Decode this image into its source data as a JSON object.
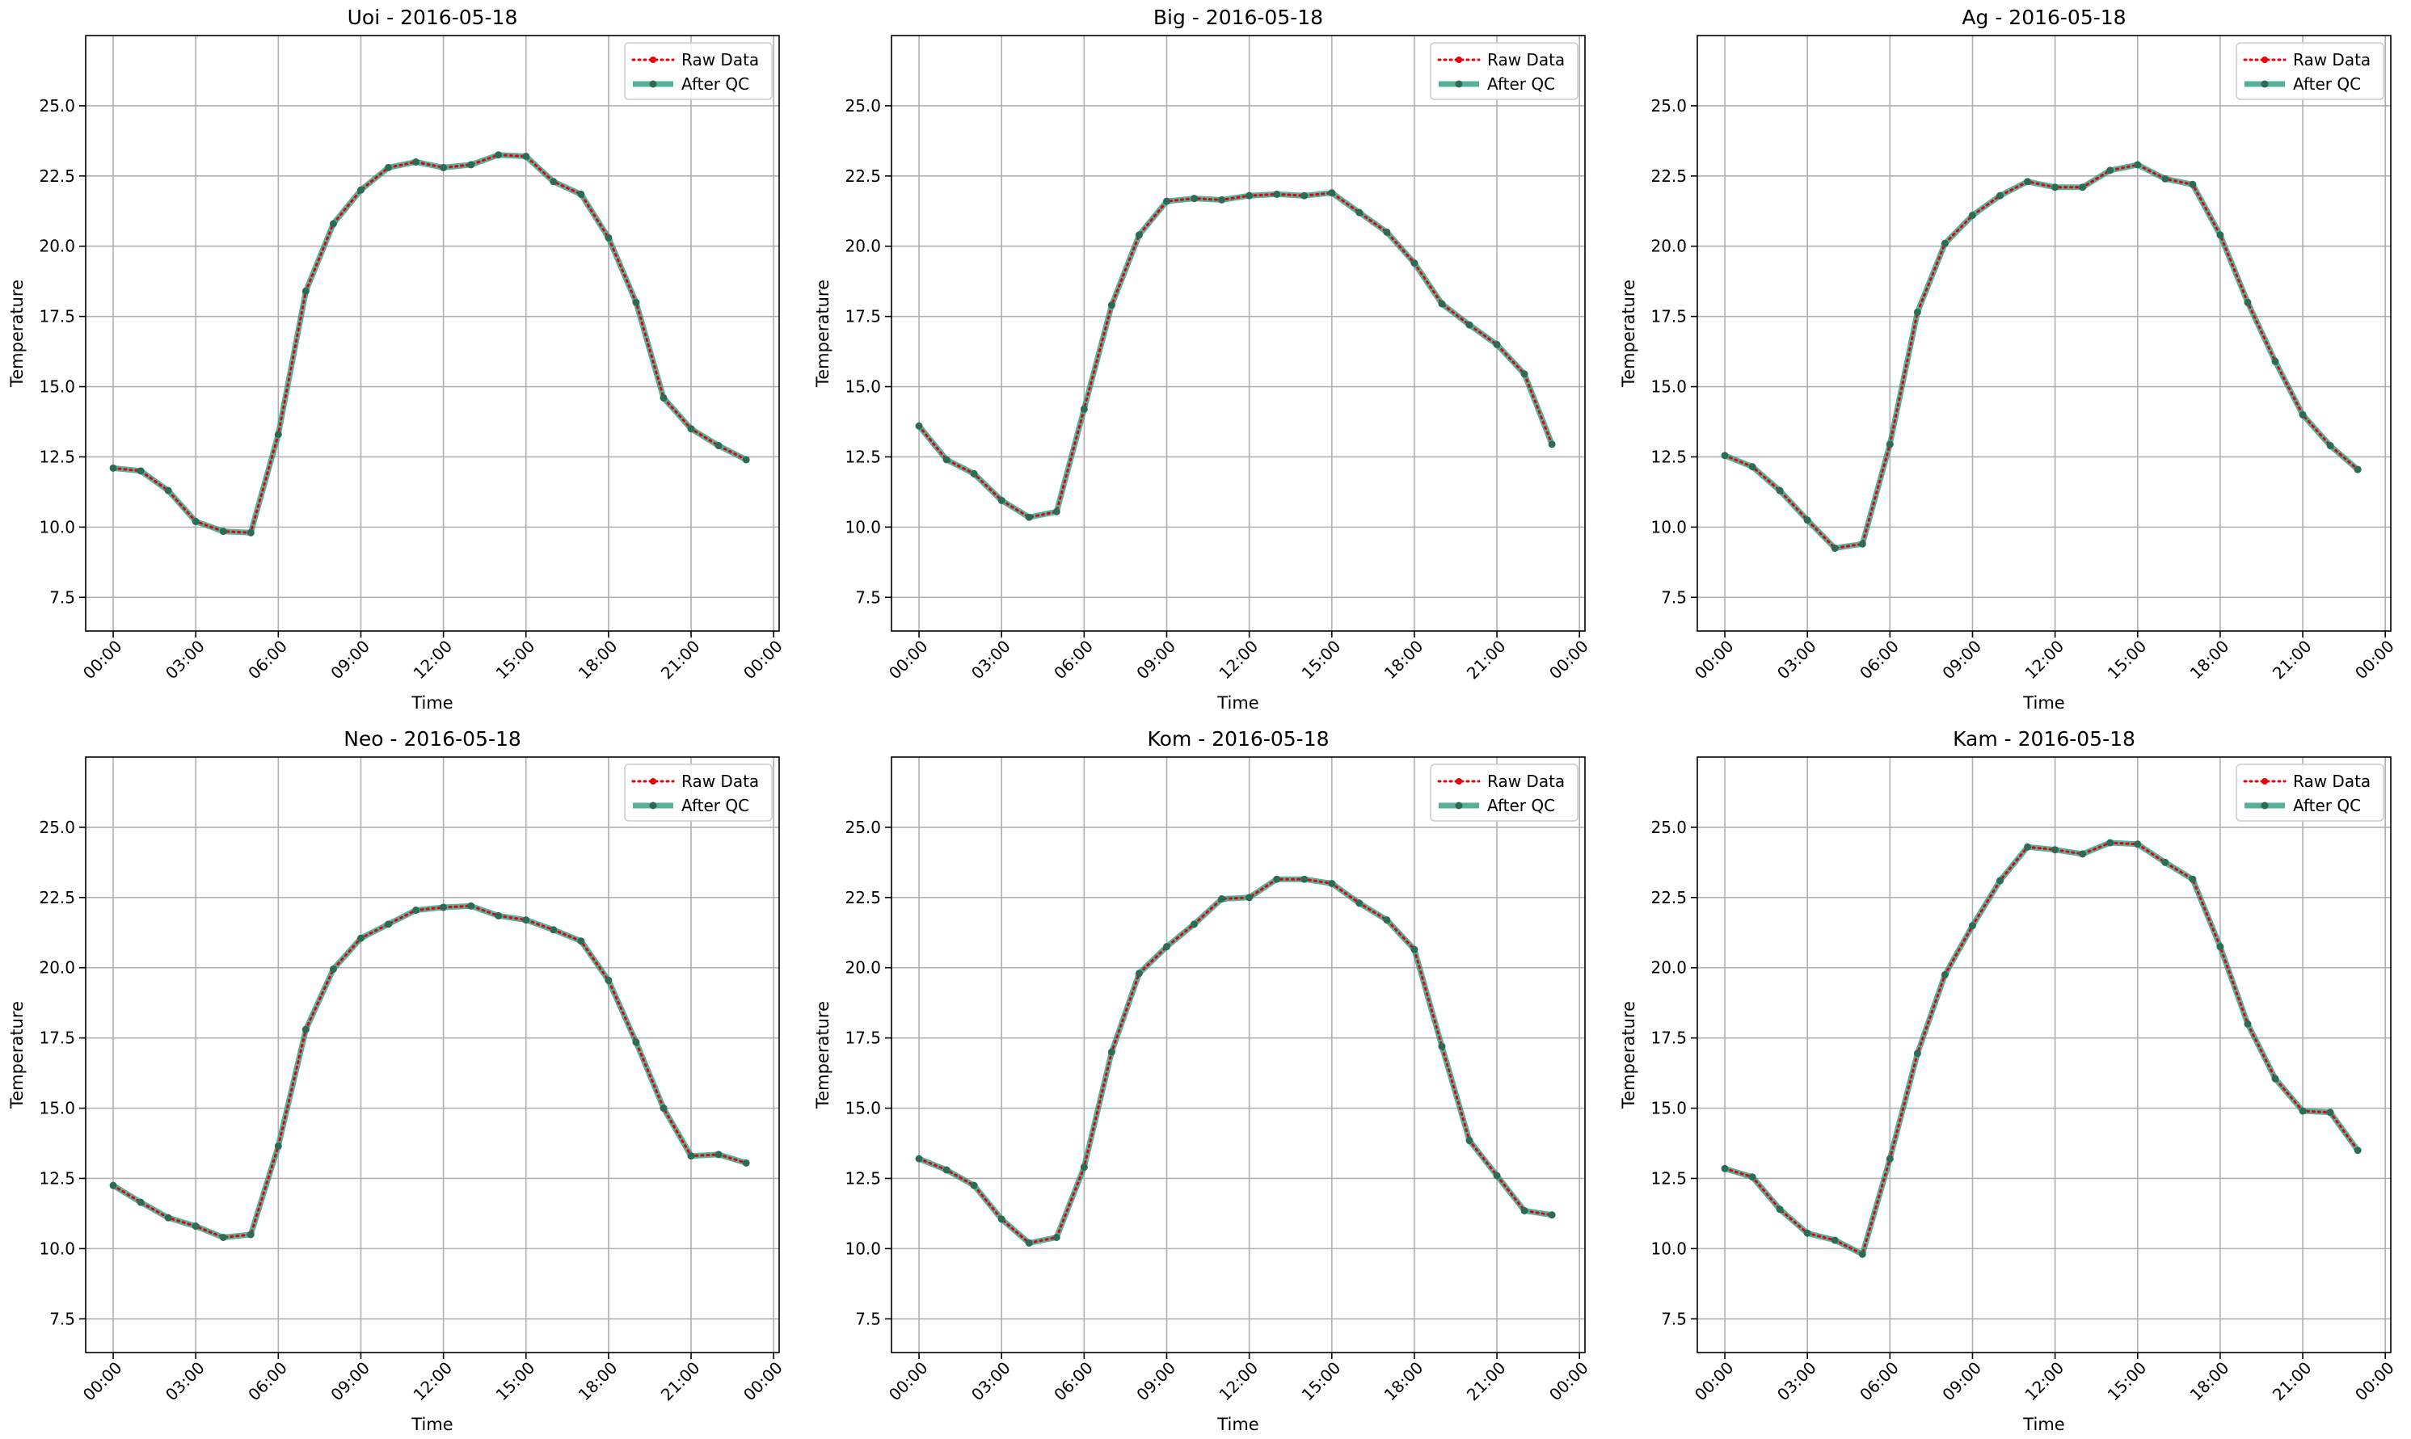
{
  "chart_data": [
    {
      "type": "line",
      "title": "Uoi - 2016-05-18",
      "xlabel": "Time",
      "ylabel": "Temperature",
      "x": [
        "00:00",
        "01:00",
        "02:00",
        "03:00",
        "04:00",
        "05:00",
        "06:00",
        "07:00",
        "08:00",
        "09:00",
        "10:00",
        "11:00",
        "12:00",
        "13:00",
        "14:00",
        "15:00",
        "16:00",
        "17:00",
        "18:00",
        "19:00",
        "20:00",
        "21:00",
        "22:00",
        "23:00"
      ],
      "series": [
        {
          "name": "Raw Data",
          "values": [
            12.1,
            12.0,
            11.3,
            10.2,
            9.85,
            9.8,
            13.3,
            18.4,
            20.8,
            22.0,
            22.8,
            23.0,
            22.8,
            22.9,
            23.25,
            23.2,
            22.3,
            21.85,
            20.3,
            18.0,
            14.6,
            13.5,
            12.9,
            12.4
          ]
        },
        {
          "name": "After QC",
          "values": [
            12.1,
            12.0,
            11.3,
            10.2,
            9.85,
            9.8,
            13.3,
            18.4,
            20.8,
            22.0,
            22.8,
            23.0,
            22.8,
            22.9,
            23.25,
            23.2,
            22.3,
            21.85,
            20.3,
            18.0,
            14.6,
            13.5,
            12.9,
            12.4
          ]
        }
      ],
      "ylim": [
        6.3,
        27.5
      ],
      "xlim": [
        -1.0,
        24.2
      ],
      "yticks": [
        "7.5",
        "10.0",
        "12.5",
        "15.0",
        "17.5",
        "20.0",
        "22.5",
        "25.0"
      ],
      "xticks": [
        "00:00",
        "03:00",
        "06:00",
        "09:00",
        "12:00",
        "15:00",
        "18:00",
        "21:00",
        "00:00"
      ],
      "grid": true,
      "legend": "top-right"
    },
    {
      "type": "line",
      "title": "Big - 2016-05-18",
      "xlabel": "Time",
      "ylabel": "Temperature",
      "x": [
        "00:00",
        "01:00",
        "02:00",
        "03:00",
        "04:00",
        "05:00",
        "06:00",
        "07:00",
        "08:00",
        "09:00",
        "10:00",
        "11:00",
        "12:00",
        "13:00",
        "14:00",
        "15:00",
        "16:00",
        "17:00",
        "18:00",
        "19:00",
        "20:00",
        "21:00",
        "22:00",
        "23:00"
      ],
      "series": [
        {
          "name": "Raw Data",
          "values": [
            13.6,
            12.4,
            11.9,
            10.95,
            10.35,
            10.55,
            14.2,
            17.9,
            20.4,
            21.6,
            21.7,
            21.65,
            21.8,
            21.85,
            21.8,
            21.9,
            21.2,
            20.5,
            19.4,
            17.95,
            17.2,
            16.5,
            15.45,
            12.95
          ]
        },
        {
          "name": "After QC",
          "values": [
            13.6,
            12.4,
            11.9,
            10.95,
            10.35,
            10.55,
            14.2,
            17.9,
            20.4,
            21.6,
            21.7,
            21.65,
            21.8,
            21.85,
            21.8,
            21.9,
            21.2,
            20.5,
            19.4,
            17.95,
            17.2,
            16.5,
            15.45,
            12.95
          ]
        }
      ],
      "ylim": [
        6.3,
        27.5
      ],
      "xlim": [
        -1.0,
        24.2
      ],
      "yticks": [
        "7.5",
        "10.0",
        "12.5",
        "15.0",
        "17.5",
        "20.0",
        "22.5",
        "25.0"
      ],
      "xticks": [
        "00:00",
        "03:00",
        "06:00",
        "09:00",
        "12:00",
        "15:00",
        "18:00",
        "21:00",
        "00:00"
      ],
      "grid": true,
      "legend": "top-right"
    },
    {
      "type": "line",
      "title": "Ag - 2016-05-18",
      "xlabel": "Time",
      "ylabel": "Temperature",
      "x": [
        "00:00",
        "01:00",
        "02:00",
        "03:00",
        "04:00",
        "05:00",
        "06:00",
        "07:00",
        "08:00",
        "09:00",
        "10:00",
        "11:00",
        "12:00",
        "13:00",
        "14:00",
        "15:00",
        "16:00",
        "17:00",
        "18:00",
        "19:00",
        "20:00",
        "21:00",
        "22:00",
        "23:00"
      ],
      "series": [
        {
          "name": "Raw Data",
          "values": [
            12.55,
            12.15,
            11.3,
            10.25,
            9.25,
            9.4,
            12.95,
            17.65,
            20.1,
            21.1,
            21.8,
            22.3,
            22.1,
            22.1,
            22.7,
            22.9,
            22.4,
            22.2,
            20.4,
            18.0,
            15.9,
            14.0,
            12.9,
            12.05
          ]
        },
        {
          "name": "After QC",
          "values": [
            12.55,
            12.15,
            11.3,
            10.25,
            9.25,
            9.4,
            12.95,
            17.65,
            20.1,
            21.1,
            21.8,
            22.3,
            22.1,
            22.1,
            22.7,
            22.9,
            22.4,
            22.2,
            20.4,
            18.0,
            15.9,
            14.0,
            12.9,
            12.05
          ]
        }
      ],
      "ylim": [
        6.3,
        27.5
      ],
      "xlim": [
        -1.0,
        24.2
      ],
      "yticks": [
        "7.5",
        "10.0",
        "12.5",
        "15.0",
        "17.5",
        "20.0",
        "22.5",
        "25.0"
      ],
      "xticks": [
        "00:00",
        "03:00",
        "06:00",
        "09:00",
        "12:00",
        "15:00",
        "18:00",
        "21:00",
        "00:00"
      ],
      "grid": true,
      "legend": "top-right"
    },
    {
      "type": "line",
      "title": "Neo - 2016-05-18",
      "xlabel": "Time",
      "ylabel": "Temperature",
      "x": [
        "00:00",
        "01:00",
        "02:00",
        "03:00",
        "04:00",
        "05:00",
        "06:00",
        "07:00",
        "08:00",
        "09:00",
        "10:00",
        "11:00",
        "12:00",
        "13:00",
        "14:00",
        "15:00",
        "16:00",
        "17:00",
        "18:00",
        "19:00",
        "20:00",
        "21:00",
        "22:00",
        "23:00"
      ],
      "series": [
        {
          "name": "Raw Data",
          "values": [
            12.25,
            11.65,
            11.1,
            10.8,
            10.4,
            10.5,
            13.65,
            17.8,
            19.95,
            21.05,
            21.55,
            22.05,
            22.15,
            22.2,
            21.85,
            21.7,
            21.35,
            20.95,
            19.55,
            17.35,
            15.0,
            13.3,
            13.35,
            13.05
          ]
        },
        {
          "name": "After QC",
          "values": [
            12.25,
            11.65,
            11.1,
            10.8,
            10.4,
            10.5,
            13.65,
            17.8,
            19.95,
            21.05,
            21.55,
            22.05,
            22.15,
            22.2,
            21.85,
            21.7,
            21.35,
            20.95,
            19.55,
            17.35,
            15.0,
            13.3,
            13.35,
            13.05
          ]
        }
      ],
      "ylim": [
        6.3,
        27.5
      ],
      "xlim": [
        -1.0,
        24.2
      ],
      "yticks": [
        "7.5",
        "10.0",
        "12.5",
        "15.0",
        "17.5",
        "20.0",
        "22.5",
        "25.0"
      ],
      "xticks": [
        "00:00",
        "03:00",
        "06:00",
        "09:00",
        "12:00",
        "15:00",
        "18:00",
        "21:00",
        "00:00"
      ],
      "grid": true,
      "legend": "top-right"
    },
    {
      "type": "line",
      "title": "Kom - 2016-05-18",
      "xlabel": "Time",
      "ylabel": "Temperature",
      "x": [
        "00:00",
        "01:00",
        "02:00",
        "03:00",
        "04:00",
        "05:00",
        "06:00",
        "07:00",
        "08:00",
        "09:00",
        "10:00",
        "11:00",
        "12:00",
        "13:00",
        "14:00",
        "15:00",
        "16:00",
        "17:00",
        "18:00",
        "19:00",
        "20:00",
        "21:00",
        "22:00",
        "23:00"
      ],
      "series": [
        {
          "name": "Raw Data",
          "values": [
            13.2,
            12.8,
            12.25,
            11.05,
            10.2,
            10.4,
            12.9,
            17.0,
            19.8,
            20.75,
            21.55,
            22.45,
            22.5,
            23.15,
            23.15,
            23.0,
            22.3,
            21.7,
            20.65,
            17.2,
            13.85,
            12.6,
            11.35,
            11.2
          ]
        },
        {
          "name": "After QC",
          "values": [
            13.2,
            12.8,
            12.25,
            11.05,
            10.2,
            10.4,
            12.9,
            17.0,
            19.8,
            20.75,
            21.55,
            22.45,
            22.5,
            23.15,
            23.15,
            23.0,
            22.3,
            21.7,
            20.65,
            17.2,
            13.85,
            12.6,
            11.35,
            11.2
          ]
        }
      ],
      "ylim": [
        6.3,
        27.5
      ],
      "xlim": [
        -1.0,
        24.2
      ],
      "yticks": [
        "7.5",
        "10.0",
        "12.5",
        "15.0",
        "17.5",
        "20.0",
        "22.5",
        "25.0"
      ],
      "xticks": [
        "00:00",
        "03:00",
        "06:00",
        "09:00",
        "12:00",
        "15:00",
        "18:00",
        "21:00",
        "00:00"
      ],
      "grid": true,
      "legend": "top-right"
    },
    {
      "type": "line",
      "title": "Kam - 2016-05-18",
      "xlabel": "Time",
      "ylabel": "Temperature",
      "x": [
        "00:00",
        "01:00",
        "02:00",
        "03:00",
        "04:00",
        "05:00",
        "06:00",
        "07:00",
        "08:00",
        "09:00",
        "10:00",
        "11:00",
        "12:00",
        "13:00",
        "14:00",
        "15:00",
        "16:00",
        "17:00",
        "18:00",
        "19:00",
        "20:00",
        "21:00",
        "22:00",
        "23:00"
      ],
      "series": [
        {
          "name": "Raw Data",
          "values": [
            12.85,
            12.55,
            11.4,
            10.55,
            10.3,
            9.8,
            13.2,
            16.95,
            19.75,
            21.5,
            23.1,
            24.3,
            24.2,
            24.05,
            24.45,
            24.4,
            23.75,
            23.15,
            20.75,
            18.0,
            16.05,
            14.9,
            14.85,
            13.5
          ]
        },
        {
          "name": "After QC",
          "values": [
            12.85,
            12.55,
            11.4,
            10.55,
            10.3,
            9.8,
            13.2,
            16.95,
            19.75,
            21.5,
            23.1,
            24.3,
            24.2,
            24.05,
            24.45,
            24.4,
            23.75,
            23.15,
            20.75,
            18.0,
            16.05,
            14.9,
            14.85,
            13.5
          ]
        }
      ],
      "ylim": [
        6.3,
        27.5
      ],
      "xlim": [
        -1.0,
        24.2
      ],
      "yticks": [
        "7.5",
        "10.0",
        "12.5",
        "15.0",
        "17.5",
        "20.0",
        "22.5",
        "25.0"
      ],
      "xticks": [
        "00:00",
        "03:00",
        "06:00",
        "09:00",
        "12:00",
        "15:00",
        "18:00",
        "21:00",
        "00:00"
      ],
      "grid": true,
      "legend": "top-right"
    }
  ],
  "colors": {
    "raw": "#e8000b",
    "qc": "#2a9d7f",
    "qc_marker": "#2e6b55",
    "grid": "#b0b0b0"
  }
}
